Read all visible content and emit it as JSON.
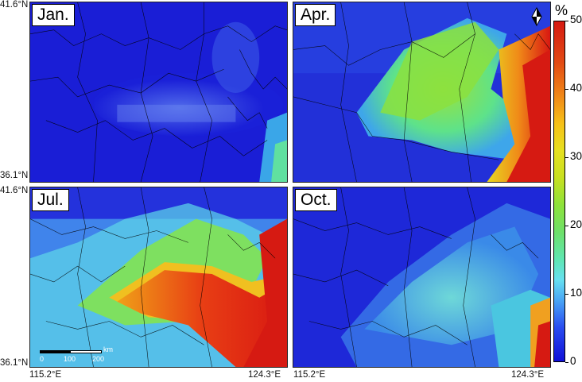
{
  "panels": {
    "jan": {
      "label": "Jan."
    },
    "apr": {
      "label": "Apr."
    },
    "jul": {
      "label": "Jul."
    },
    "oct": {
      "label": "Oct."
    }
  },
  "coords": {
    "lat_top": "41.6°N",
    "lat_bottom": "36.1°N",
    "lon_left": "115.2°E",
    "lon_right": "124.3°E"
  },
  "colorbar": {
    "unit": "%",
    "ticks": [
      "0",
      "10",
      "20",
      "30",
      "40",
      "50"
    ],
    "min": 0,
    "max": 50,
    "colors": {
      "low": "#1010d8",
      "mid": "#6ee06a",
      "high": "#d61a12"
    }
  },
  "scalebar": {
    "labels": [
      "0",
      "100",
      "200"
    ],
    "unit": "km"
  }
}
